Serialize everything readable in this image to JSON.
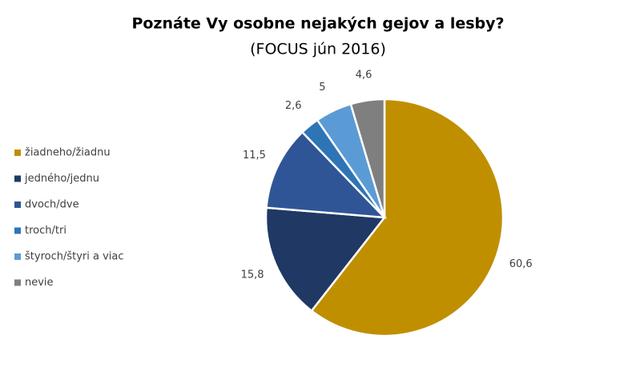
{
  "chart_data": {
    "type": "pie",
    "title": "Poznáte Vy osobne nejakých gejov a lesby?",
    "subtitle": "(FOCUS jún 2016)",
    "categories": [
      "žiadneho/žiadnu",
      "jedného/jednu",
      "dvoch/dve",
      "troch/tri",
      "štyroch/štyri a viac",
      "nevie"
    ],
    "values": [
      60.6,
      15.8,
      11.5,
      2.6,
      5,
      4.6
    ],
    "value_labels": [
      "60,6",
      "15,8",
      "11,5",
      "2,6",
      "5",
      "4,6"
    ],
    "colors": [
      "#bf8f00",
      "#203864",
      "#2f5597",
      "#2e75b6",
      "#5b9bd5",
      "#7f7f7f"
    ],
    "legend": "left"
  }
}
